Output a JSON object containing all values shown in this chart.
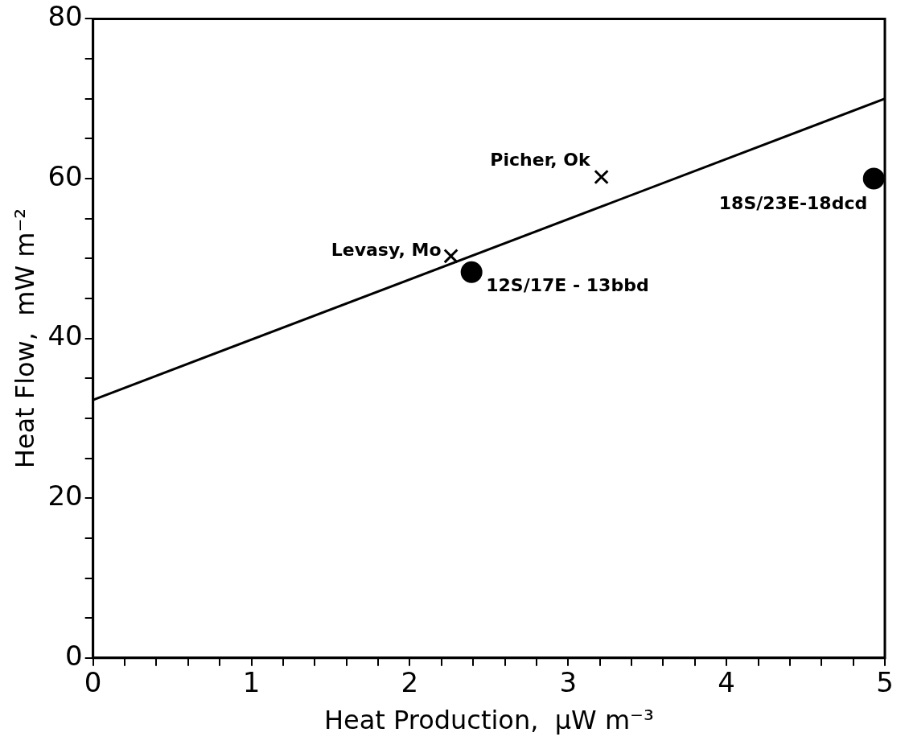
{
  "chart_data": {
    "type": "scatter",
    "xlabel": "Heat Production,  μW m⁻³",
    "ylabel": "Heat Flow,  mW m⁻²",
    "xlim": [
      0,
      5
    ],
    "ylim": [
      0,
      80
    ],
    "xticks": [
      0,
      {
        "value": 0.2,
        "label": null
      },
      {
        "value": 0.4,
        "label": null
      },
      {
        "value": 0.6,
        "label": null
      },
      {
        "value": 0.8,
        "label": null
      },
      1,
      {
        "value": 1.2,
        "label": null
      },
      {
        "value": 1.4,
        "label": null
      },
      {
        "value": 1.6,
        "label": null
      },
      {
        "value": 1.8,
        "label": null
      },
      2,
      {
        "value": 2.2,
        "label": null
      },
      {
        "value": 2.4,
        "label": null
      },
      {
        "value": 2.6,
        "label": null
      },
      {
        "value": 2.8,
        "label": null
      },
      3,
      {
        "value": 3.2,
        "label": null
      },
      {
        "value": 3.4,
        "label": null
      },
      {
        "value": 3.6,
        "label": null
      },
      {
        "value": 3.8,
        "label": null
      },
      4,
      {
        "value": 4.2,
        "label": null
      },
      {
        "value": 4.4,
        "label": null
      },
      {
        "value": 4.6,
        "label": null
      },
      {
        "value": 4.8,
        "label": null
      },
      5
    ],
    "yticks": [
      0,
      {
        "value": 5,
        "label": null
      },
      {
        "value": 10,
        "label": null
      },
      {
        "value": 15,
        "label": null
      },
      20,
      {
        "value": 25,
        "label": null
      },
      {
        "value": 30,
        "label": null
      },
      {
        "value": 35,
        "label": null
      },
      40,
      {
        "value": 45,
        "label": null
      },
      {
        "value": 50,
        "label": null
      },
      {
        "value": 55,
        "label": null
      },
      60,
      {
        "value": 65,
        "label": null
      },
      {
        "value": 70,
        "label": null
      },
      {
        "value": 75,
        "label": null
      },
      80
    ],
    "grid": false,
    "legend": false,
    "series": [
      {
        "type": "scatter",
        "marker": "cross",
        "color": "#000000",
        "x": [
          2.26,
          3.21
        ],
        "values": [
          50.3,
          60.2
        ]
      },
      {
        "type": "scatter",
        "marker": "circle",
        "color": "#000000",
        "x": [
          2.39,
          4.93
        ],
        "values": [
          48.3,
          60
        ]
      },
      {
        "type": "line",
        "marker": "none",
        "line_style": "solid",
        "color": "#000000",
        "x": [
          0,
          5
        ],
        "values": [
          32.3,
          70
        ]
      }
    ],
    "annotations": [
      {
        "text": "Levasy, Mo",
        "x": 2.26,
        "y": 50.3
      },
      {
        "text": "Picher, Ok",
        "x": 3.21,
        "y": 60.2
      },
      {
        "text": "12S/17E - 13bbd",
        "x": 2.39,
        "y": 48.3
      },
      {
        "text": "18S/23E-18dcd",
        "x": 4.93,
        "y": 60
      }
    ]
  }
}
